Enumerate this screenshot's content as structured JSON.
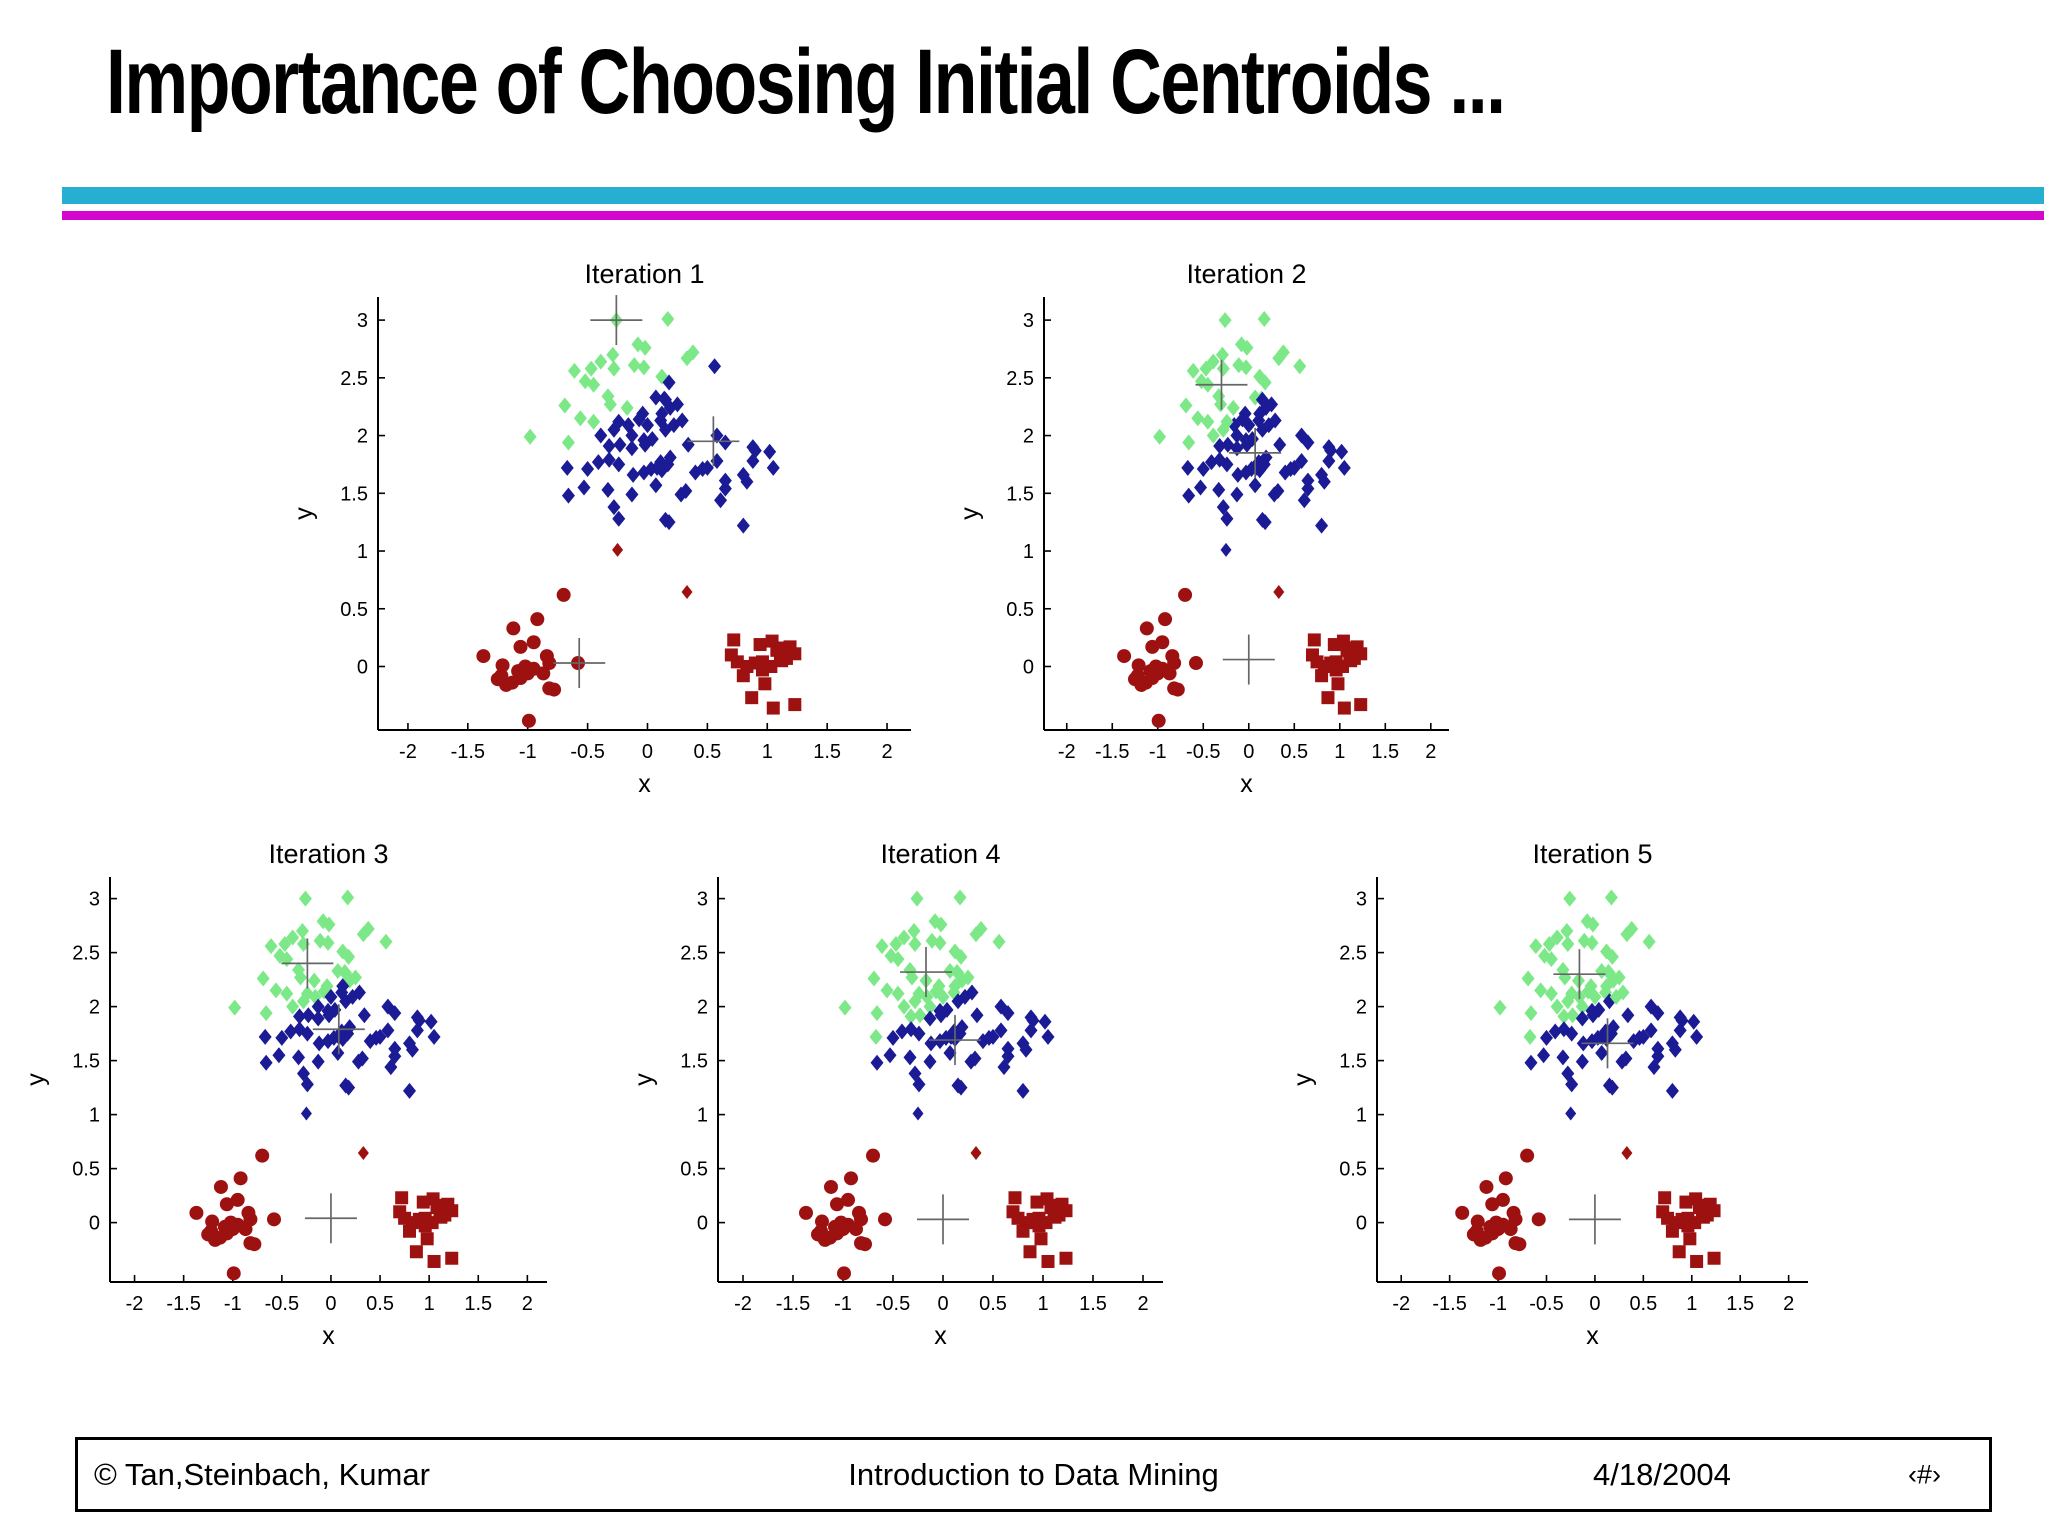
{
  "slide": {
    "title": "Importance of Choosing Initial Centroids ...",
    "accent_colors": {
      "cyan_bar": "#27AFD2",
      "magenta_bar": "#D307CE"
    },
    "footer": {
      "copyright": "© Tan,Steinbach, Kumar",
      "center": "Introduction to Data Mining",
      "date": "4/18/2004",
      "page": "‹#›"
    }
  },
  "chart_data": {
    "type": "scatter",
    "description": "Five k-means iterations on the same data set; marker color shows current cluster assignment (nearest centroid), plus signs show centroid positions",
    "xlabel": "x",
    "ylabel": "y",
    "xlim": [
      -2.25,
      2.2
    ],
    "ylim": [
      -0.55,
      3.2
    ],
    "x_ticks": [
      "-2",
      "-1.5",
      "-1",
      "-0.5",
      "0",
      "0.5",
      "1",
      "1.5",
      "2"
    ],
    "x_tick_values": [
      -2,
      -1.5,
      -1,
      -0.5,
      0,
      0.5,
      1,
      1.5,
      2
    ],
    "y_ticks": [
      "0",
      "0.5",
      "1",
      "1.5",
      "2",
      "2.5",
      "3"
    ],
    "y_tick_values": [
      0,
      0.5,
      1,
      1.5,
      2,
      2.5,
      3
    ],
    "grid": false,
    "legend": "none",
    "cluster_colors": [
      "#7DE887",
      "#1B1B96",
      "#9E1111"
    ],
    "groups": {
      "top_diamonds": [
        [
          -0.26,
          3.0
        ],
        [
          0.17,
          3.01
        ],
        [
          -0.08,
          2.79
        ],
        [
          -0.02,
          2.76
        ],
        [
          0.38,
          2.72
        ],
        [
          0.33,
          2.67
        ],
        [
          -0.29,
          2.7
        ],
        [
          -0.39,
          2.64
        ],
        [
          -0.61,
          2.56
        ],
        [
          -0.47,
          2.58
        ],
        [
          -0.52,
          2.47
        ],
        [
          -0.45,
          2.44
        ],
        [
          -0.28,
          2.58
        ],
        [
          -0.11,
          2.61
        ],
        [
          -0.03,
          2.59
        ],
        [
          0.12,
          2.51
        ],
        [
          0.18,
          2.46
        ],
        [
          -0.69,
          2.26
        ],
        [
          -0.56,
          2.15
        ],
        [
          -0.45,
          2.12
        ],
        [
          -0.33,
          2.34
        ],
        [
          -0.31,
          2.27
        ],
        [
          -0.98,
          1.99
        ],
        [
          -0.66,
          1.94
        ],
        [
          -0.17,
          2.24
        ],
        [
          -0.04,
          2.19
        ],
        [
          0.14,
          2.32
        ],
        [
          0.19,
          2.24
        ],
        [
          -0.16,
          2.09
        ],
        [
          -0.07,
          2.14
        ],
        [
          -0.28,
          2.05
        ],
        [
          -0.24,
          2.12
        ],
        [
          -0.39,
          2.0
        ],
        [
          -0.32,
          1.91
        ],
        [
          -0.23,
          1.92
        ],
        [
          -0.13,
          2.0
        ],
        [
          0.0,
          2.09
        ],
        [
          0.11,
          2.13
        ],
        [
          0.15,
          2.05
        ],
        [
          -0.13,
          1.89
        ],
        [
          -0.02,
          1.92
        ],
        [
          -0.41,
          1.77
        ],
        [
          -0.32,
          1.79
        ],
        [
          -0.24,
          1.75
        ],
        [
          -0.67,
          1.72
        ],
        [
          -0.53,
          1.55
        ],
        [
          -0.66,
          1.48
        ],
        [
          -0.5,
          1.71
        ],
        [
          -0.12,
          1.66
        ],
        [
          -0.03,
          1.68
        ],
        [
          0.08,
          1.72
        ],
        [
          0.17,
          1.75
        ],
        [
          -0.33,
          1.53
        ],
        [
          -0.13,
          1.49
        ],
        [
          -0.28,
          1.38
        ],
        [
          -0.24,
          1.28
        ],
        [
          0.15,
          1.27
        ],
        [
          0.56,
          2.6
        ],
        [
          0.07,
          2.33
        ],
        [
          0.15,
          2.31
        ],
        [
          0.25,
          2.27
        ],
        [
          0.12,
          2.19
        ],
        [
          0.29,
          2.13
        ],
        [
          0.22,
          2.09
        ],
        [
          0.04,
          1.97
        ],
        [
          -0.03,
          1.96
        ],
        [
          0.34,
          1.92
        ],
        [
          0.58,
          2.0
        ],
        [
          0.65,
          1.94
        ],
        [
          0.88,
          1.9
        ],
        [
          0.9,
          1.87
        ],
        [
          0.88,
          1.78
        ],
        [
          0.58,
          1.78
        ],
        [
          0.4,
          1.68
        ],
        [
          0.46,
          1.71
        ],
        [
          0.5,
          1.72
        ],
        [
          0.19,
          1.81
        ],
        [
          0.11,
          1.77
        ],
        [
          0.03,
          1.71
        ],
        [
          0.12,
          1.7
        ],
        [
          0.8,
          1.66
        ],
        [
          0.65,
          1.61
        ],
        [
          0.07,
          1.57
        ],
        [
          0.28,
          1.49
        ],
        [
          0.32,
          1.52
        ],
        [
          0.61,
          1.44
        ],
        [
          0.18,
          1.25
        ],
        [
          0.8,
          1.22
        ],
        [
          1.02,
          1.86
        ],
        [
          1.05,
          1.72
        ],
        [
          0.83,
          1.6
        ],
        [
          0.65,
          1.54
        ]
      ],
      "mid_diamonds": [
        [
          -0.25,
          1.01
        ],
        [
          0.33,
          0.645
        ]
      ],
      "left_circles": [
        [
          -0.7,
          0.62
        ],
        [
          -0.92,
          0.41
        ],
        [
          -1.12,
          0.33
        ],
        [
          -1.06,
          0.17
        ],
        [
          -0.95,
          0.21
        ],
        [
          -1.37,
          0.09
        ],
        [
          -0.84,
          0.09
        ],
        [
          -0.82,
          0.03
        ],
        [
          -1.21,
          0.01
        ],
        [
          -1.08,
          -0.04
        ],
        [
          -1.0,
          -0.06
        ],
        [
          -0.95,
          -0.02
        ],
        [
          -0.87,
          -0.06
        ],
        [
          -1.25,
          -0.11
        ],
        [
          -1.18,
          -0.16
        ],
        [
          -1.13,
          -0.14
        ],
        [
          -1.06,
          -0.1
        ],
        [
          -0.82,
          -0.19
        ],
        [
          -0.78,
          -0.2
        ],
        [
          -0.58,
          0.03
        ],
        [
          -0.99,
          -0.47
        ],
        [
          -1.02,
          0.0
        ],
        [
          -1.22,
          -0.08
        ]
      ],
      "right_squares": [
        [
          0.72,
          0.23
        ],
        [
          0.94,
          0.19
        ],
        [
          1.04,
          0.22
        ],
        [
          1.13,
          0.16
        ],
        [
          1.19,
          0.17
        ],
        [
          0.75,
          0.04
        ],
        [
          0.83,
          0.0
        ],
        [
          0.9,
          0.03
        ],
        [
          0.96,
          0.04
        ],
        [
          0.96,
          -0.03
        ],
        [
          1.03,
          0.0
        ],
        [
          1.11,
          0.1
        ],
        [
          1.16,
          0.07
        ],
        [
          1.23,
          0.11
        ],
        [
          0.98,
          -0.15
        ],
        [
          1.05,
          -0.36
        ],
        [
          1.23,
          -0.33
        ],
        [
          0.87,
          -0.27
        ],
        [
          0.7,
          0.1
        ],
        [
          1.08,
          0.14
        ],
        [
          1.12,
          0.05
        ],
        [
          0.8,
          -0.08
        ]
      ]
    },
    "panels": [
      {
        "title": "Iteration 1",
        "centroids": [
          [
            -0.26,
            3.0
          ],
          [
            0.55,
            1.95
          ],
          [
            -0.57,
            0.03
          ]
        ]
      },
      {
        "title": "Iteration 2",
        "centroids": [
          [
            -0.3,
            2.44
          ],
          [
            0.07,
            1.85
          ],
          [
            0.0,
            0.06
          ]
        ]
      },
      {
        "title": "Iteration 3",
        "centroids": [
          [
            -0.24,
            2.4
          ],
          [
            0.08,
            1.79
          ],
          [
            0.0,
            0.04
          ]
        ]
      },
      {
        "title": "Iteration 4",
        "centroids": [
          [
            -0.17,
            2.32
          ],
          [
            0.12,
            1.69
          ],
          [
            0.0,
            0.03
          ]
        ]
      },
      {
        "title": "Iteration 5",
        "centroids": [
          [
            -0.16,
            2.3
          ],
          [
            0.13,
            1.66
          ],
          [
            0.0,
            0.03
          ]
        ]
      }
    ]
  }
}
